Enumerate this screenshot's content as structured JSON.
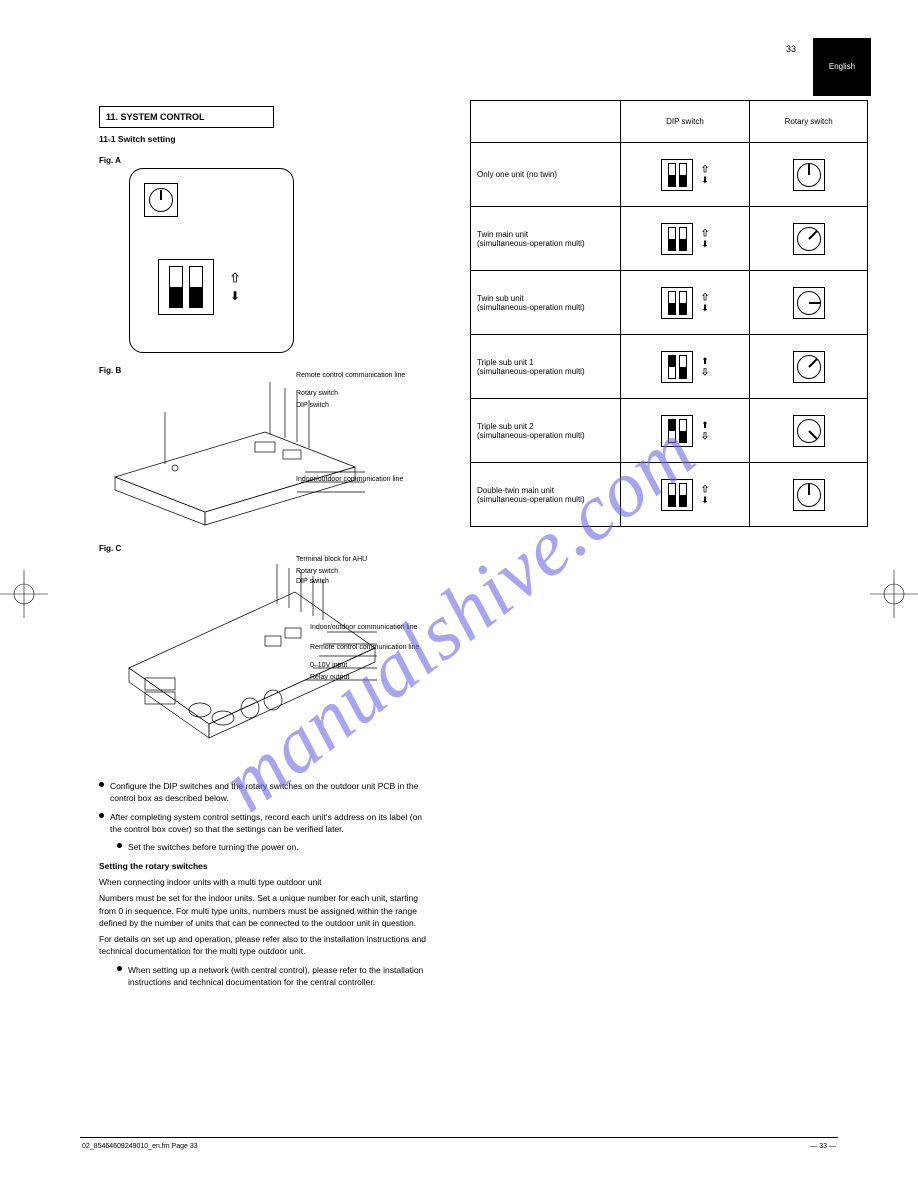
{
  "page": {
    "number": "33",
    "tab": "English"
  },
  "section": {
    "title": "11. SYSTEM CONTROL",
    "subtitle": "11-1 Switch setting"
  },
  "figA": {
    "label": "Fig. A"
  },
  "figB": {
    "label": "Fig. B"
  },
  "figC": {
    "label": "Fig. C"
  },
  "board_labels": {
    "b1": "Remote control communication line",
    "b2": "Rotary switch",
    "b3": "DIP switch",
    "b4": "Indoor/outdoor communication line",
    "c1": "Terminal block for AHU",
    "c2": "Rotary switch",
    "c3": "DIP switch",
    "c4": "Indoor/outdoor communication line",
    "c5": "Remote control communication line",
    "c6": "0–10V input",
    "c7": "Relay output"
  },
  "bullets": {
    "b1": "Configure the DIP switches and the rotary switches on the outdoor unit PCB in the control box as described below.",
    "b2": "After completing system control settings, record each unit's address on its label (on the control box cover) so that the settings can be verified later.",
    "b2a": "Set the switches before turning the power on.",
    "b3_head": "Setting the rotary switches",
    "b3_a": "When connecting indoor units with a multi type outdoor unit",
    "b3_b": "Numbers must be set for the indoor units. Set a unique number for each unit, starting from 0 in sequence. For multi type units, numbers must be assigned within the range defined by the number of units that can be connected to the outdoor unit in question.",
    "b3_c": "For details on set up and operation, please refer also to the installation instructions and technical documentation for the multi type outdoor unit.",
    "b4": "When setting up a network (with central control), please refer to the installation instructions and technical documentation for the central controller."
  },
  "table": {
    "headers": [
      "",
      "DIP switch",
      "Rotary switch"
    ],
    "rows": [
      {
        "label": "Only one unit (no twin)",
        "sw": [
          "down",
          "down"
        ],
        "arrows": "upsolid",
        "knob_angle": 0
      },
      {
        "label": "Twin main unit\n(simultaneous-operation multi)",
        "sw": [
          "down",
          "down"
        ],
        "arrows": "downsolid",
        "knob_angle": 45
      },
      {
        "label": "Twin sub unit\n(simultaneous-operation multi)",
        "sw": [
          "down",
          "down"
        ],
        "arrows": "downsolid",
        "knob_angle": 90
      },
      {
        "label": "Triple sub unit 1\n(simultaneous-operation multi)",
        "sw": [
          "up",
          "down"
        ],
        "arrows": "upsolid",
        "knob_angle": 45
      },
      {
        "label": "Triple sub unit 2\n(simultaneous-operation multi)",
        "sw": [
          "up",
          "down"
        ],
        "arrows": "upsolid",
        "knob_angle": 135
      },
      {
        "label": "Double-twin main unit\n(simultaneous-operation multi)",
        "sw": [
          "down",
          "down"
        ],
        "arrows": "upsolid",
        "knob_angle": 0
      }
    ]
  },
  "watermark": "manualshive.com",
  "footer": {
    "left": "02_85464609249010_en.fm Page 33",
    "right": "— 33 —"
  }
}
